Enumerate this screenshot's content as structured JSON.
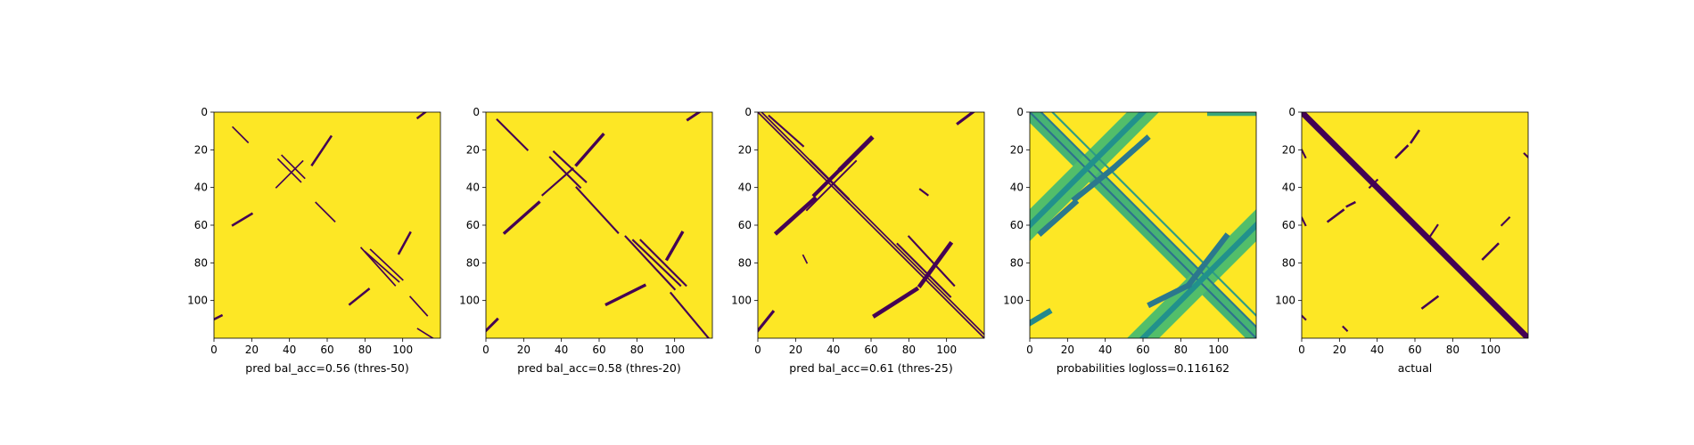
{
  "colors": {
    "background": "#ffffff",
    "low": "#440154",
    "mid_low": "#31688e",
    "mid": "#21918c",
    "mid_high": "#5ec962",
    "high": "#fde725"
  },
  "chart_data": [
    {
      "type": "heatmap",
      "colormap": "viridis",
      "xlabel": "pred bal_acc=0.56 (thres-50)",
      "matrix_size": 120,
      "xlim": [
        0,
        120
      ],
      "ylim": [
        120,
        0
      ],
      "xticks": [
        0,
        20,
        40,
        60,
        80,
        100
      ],
      "yticks": [
        0,
        20,
        40,
        60,
        80,
        100
      ],
      "background_value": 1,
      "segments": [
        {
          "from": [
            34,
            25
          ],
          "to": [
            46,
            37
          ],
          "value": 0,
          "width": 0.8
        },
        {
          "from": [
            36,
            23
          ],
          "to": [
            48,
            35
          ],
          "value": 0,
          "width": 0.8
        },
        {
          "from": [
            33,
            40
          ],
          "to": [
            47,
            26
          ],
          "value": 0,
          "width": 0.8
        },
        {
          "from": [
            10,
            8
          ],
          "to": [
            18,
            16
          ],
          "value": 0,
          "width": 0.8
        },
        {
          "from": [
            54,
            48
          ],
          "to": [
            64,
            58
          ],
          "value": 0,
          "width": 0.8
        },
        {
          "from": [
            78,
            72
          ],
          "to": [
            96,
            92
          ],
          "value": 0,
          "width": 0.8
        },
        {
          "from": [
            80,
            74
          ],
          "to": [
            98,
            90
          ],
          "value": 0,
          "width": 0.8
        },
        {
          "from": [
            83,
            73
          ],
          "to": [
            100,
            89
          ],
          "value": 0,
          "width": 0.8
        },
        {
          "from": [
            104,
            98
          ],
          "to": [
            113,
            108
          ],
          "value": 0,
          "width": 0.8
        },
        {
          "from": [
            108,
            115
          ],
          "to": [
            116,
            120
          ],
          "value": 0,
          "width": 0.8
        },
        {
          "from": [
            10,
            60
          ],
          "to": [
            20,
            54
          ],
          "value": 0,
          "width": 1.2
        },
        {
          "from": [
            52,
            28
          ],
          "to": [
            62,
            13
          ],
          "value": 0,
          "width": 1.2
        },
        {
          "from": [
            72,
            102
          ],
          "to": [
            82,
            94
          ],
          "value": 0,
          "width": 1.2
        },
        {
          "from": [
            98,
            75
          ],
          "to": [
            104,
            64
          ],
          "value": 0,
          "width": 1.2
        },
        {
          "from": [
            0,
            110
          ],
          "to": [
            4,
            108
          ],
          "value": 0,
          "width": 1.2
        },
        {
          "from": [
            108,
            3
          ],
          "to": [
            112,
            0
          ],
          "value": 0,
          "width": 1.2
        }
      ]
    },
    {
      "type": "heatmap",
      "colormap": "viridis",
      "xlabel": "pred bal_acc=0.58 (thres-20)",
      "matrix_size": 120,
      "xlim": [
        0,
        120
      ],
      "ylim": [
        120,
        0
      ],
      "xticks": [
        0,
        20,
        40,
        60,
        80,
        100
      ],
      "yticks": [
        0,
        20,
        40,
        60,
        80,
        100
      ],
      "background_value": 1,
      "segments": [
        {
          "from": [
            34,
            24
          ],
          "to": [
            50,
            40
          ],
          "value": 0,
          "width": 1
        },
        {
          "from": [
            36,
            21
          ],
          "to": [
            53,
            37
          ],
          "value": 0,
          "width": 1
        },
        {
          "from": [
            30,
            44
          ],
          "to": [
            46,
            30
          ],
          "value": 0,
          "width": 1
        },
        {
          "from": [
            6,
            4
          ],
          "to": [
            22,
            20
          ],
          "value": 0,
          "width": 1
        },
        {
          "from": [
            48,
            40
          ],
          "to": [
            70,
            64
          ],
          "value": 0,
          "width": 1
        },
        {
          "from": [
            74,
            66
          ],
          "to": [
            100,
            94
          ],
          "value": 0,
          "width": 1
        },
        {
          "from": [
            78,
            68
          ],
          "to": [
            103,
            92
          ],
          "value": 0,
          "width": 1
        },
        {
          "from": [
            82,
            68
          ],
          "to": [
            106,
            92
          ],
          "value": 0,
          "width": 1
        },
        {
          "from": [
            98,
            96
          ],
          "to": [
            118,
            120
          ],
          "value": 0,
          "width": 1
        },
        {
          "from": [
            10,
            64
          ],
          "to": [
            28,
            48
          ],
          "value": 0,
          "width": 1.6
        },
        {
          "from": [
            48,
            28
          ],
          "to": [
            62,
            12
          ],
          "value": 0,
          "width": 1.6
        },
        {
          "from": [
            64,
            102
          ],
          "to": [
            84,
            92
          ],
          "value": 0,
          "width": 1.6
        },
        {
          "from": [
            96,
            78
          ],
          "to": [
            104,
            64
          ],
          "value": 0,
          "width": 1.6
        },
        {
          "from": [
            0,
            116
          ],
          "to": [
            6,
            110
          ],
          "value": 0,
          "width": 1.4
        },
        {
          "from": [
            107,
            4
          ],
          "to": [
            113,
            0
          ],
          "value": 0,
          "width": 1.4
        }
      ]
    },
    {
      "type": "heatmap",
      "colormap": "viridis",
      "xlabel": "pred bal_acc=0.61 (thres-25)",
      "matrix_size": 120,
      "xlim": [
        0,
        120
      ],
      "ylim": [
        120,
        0
      ],
      "xticks": [
        0,
        20,
        40,
        60,
        80,
        100
      ],
      "yticks": [
        0,
        20,
        40,
        60,
        80,
        100
      ],
      "background_value": 1,
      "segments": [
        {
          "from": [
            0,
            0
          ],
          "to": [
            120,
            120
          ],
          "value": 0,
          "width": 0.8
        },
        {
          "from": [
            2,
            0
          ],
          "to": [
            120,
            118
          ],
          "value": 0,
          "width": 0.8
        },
        {
          "from": [
            26,
            52
          ],
          "to": [
            52,
            26
          ],
          "value": 0,
          "width": 0.9
        },
        {
          "from": [
            28,
            26
          ],
          "to": [
            48,
            46
          ],
          "value": 0,
          "width": 1.2
        },
        {
          "from": [
            74,
            70
          ],
          "to": [
            102,
            98
          ],
          "value": 0,
          "width": 1
        },
        {
          "from": [
            80,
            66
          ],
          "to": [
            104,
            92
          ],
          "value": 0,
          "width": 1
        },
        {
          "from": [
            6,
            2
          ],
          "to": [
            24,
            18
          ],
          "value": 0,
          "width": 1
        },
        {
          "from": [
            10,
            64
          ],
          "to": [
            30,
            46
          ],
          "value": 0,
          "width": 2.2
        },
        {
          "from": [
            30,
            44
          ],
          "to": [
            44,
            30
          ],
          "value": 0,
          "width": 2
        },
        {
          "from": [
            44,
            30
          ],
          "to": [
            60,
            14
          ],
          "value": 0,
          "width": 2.4
        },
        {
          "from": [
            62,
            108
          ],
          "to": [
            84,
            94
          ],
          "value": 0,
          "width": 2.2
        },
        {
          "from": [
            86,
            92
          ],
          "to": [
            102,
            70
          ],
          "value": 0,
          "width": 2.2
        },
        {
          "from": [
            0,
            116
          ],
          "to": [
            8,
            106
          ],
          "value": 0,
          "width": 1.5
        },
        {
          "from": [
            106,
            6
          ],
          "to": [
            114,
            0
          ],
          "value": 0,
          "width": 1.5
        },
        {
          "from": [
            86,
            41
          ],
          "to": [
            90,
            44
          ],
          "value": 0,
          "width": 1
        },
        {
          "from": [
            24,
            76
          ],
          "to": [
            26,
            80
          ],
          "value": 0,
          "width": 0.8
        }
      ]
    },
    {
      "type": "heatmap",
      "colormap": "viridis",
      "xlabel": "probabilities logloss=0.116162",
      "matrix_size": 120,
      "xlim": [
        0,
        120
      ],
      "ylim": [
        120,
        0
      ],
      "xticks": [
        0,
        20,
        40,
        60,
        80,
        100
      ],
      "yticks": [
        0,
        20,
        40,
        60,
        80,
        100
      ],
      "background_value": 1,
      "segments": [
        {
          "from": [
            0,
            0
          ],
          "to": [
            120,
            120
          ],
          "value": 0.65,
          "width": 8
        },
        {
          "from": [
            0,
            60
          ],
          "to": [
            60,
            0
          ],
          "value": 0.7,
          "width": 12
        },
        {
          "from": [
            60,
            120
          ],
          "to": [
            120,
            60
          ],
          "value": 0.7,
          "width": 12
        },
        {
          "from": [
            0,
            0
          ],
          "to": [
            120,
            120
          ],
          "value": 0.3,
          "width": 1
        },
        {
          "from": [
            6,
            0
          ],
          "to": [
            120,
            114
          ],
          "value": 0.35,
          "width": 1
        },
        {
          "from": [
            12,
            0
          ],
          "to": [
            120,
            108
          ],
          "value": 0.55,
          "width": 1
        },
        {
          "from": [
            0,
            60
          ],
          "to": [
            60,
            0
          ],
          "value": 0.5,
          "width": 3
        },
        {
          "from": [
            60,
            120
          ],
          "to": [
            120,
            60
          ],
          "value": 0.5,
          "width": 3
        },
        {
          "from": [
            6,
            64
          ],
          "to": [
            24,
            48
          ],
          "value": 0.35,
          "width": 3
        },
        {
          "from": [
            24,
            46
          ],
          "to": [
            44,
            30
          ],
          "value": 0.35,
          "width": 3
        },
        {
          "from": [
            44,
            30
          ],
          "to": [
            62,
            14
          ],
          "value": 0.35,
          "width": 3
        },
        {
          "from": [
            64,
            102
          ],
          "to": [
            84,
            92
          ],
          "value": 0.35,
          "width": 3
        },
        {
          "from": [
            84,
            92
          ],
          "to": [
            104,
            66
          ],
          "value": 0.35,
          "width": 3
        },
        {
          "from": [
            96,
            0
          ],
          "to": [
            118,
            0
          ],
          "value": 0.6,
          "width": 4
        },
        {
          "from": [
            0,
            112
          ],
          "to": [
            10,
            106
          ],
          "value": 0.45,
          "width": 3
        }
      ]
    },
    {
      "type": "heatmap",
      "colormap": "viridis",
      "xlabel": "actual",
      "matrix_size": 120,
      "xlim": [
        0,
        120
      ],
      "ylim": [
        120,
        0
      ],
      "xticks": [
        0,
        20,
        40,
        60,
        80,
        100
      ],
      "yticks": [
        0,
        20,
        40,
        60,
        80,
        100
      ],
      "background_value": 1,
      "segments": [
        {
          "from": [
            0,
            0
          ],
          "to": [
            120,
            120
          ],
          "value": 0,
          "width": 3.2
        },
        {
          "from": [
            50,
            24
          ],
          "to": [
            56,
            18
          ],
          "value": 0,
          "width": 1.2
        },
        {
          "from": [
            58,
            16
          ],
          "to": [
            62,
            10
          ],
          "value": 0,
          "width": 1.2
        },
        {
          "from": [
            14,
            58
          ],
          "to": [
            22,
            52
          ],
          "value": 0,
          "width": 1.2
        },
        {
          "from": [
            24,
            50
          ],
          "to": [
            28,
            48
          ],
          "value": 0,
          "width": 1.2
        },
        {
          "from": [
            36,
            40
          ],
          "to": [
            40,
            36
          ],
          "value": 0,
          "width": 1
        },
        {
          "from": [
            68,
            66
          ],
          "to": [
            72,
            60
          ],
          "value": 0,
          "width": 1
        },
        {
          "from": [
            64,
            104
          ],
          "to": [
            72,
            98
          ],
          "value": 0,
          "width": 1.2
        },
        {
          "from": [
            96,
            78
          ],
          "to": [
            104,
            70
          ],
          "value": 0,
          "width": 1.2
        },
        {
          "from": [
            106,
            60
          ],
          "to": [
            110,
            56
          ],
          "value": 0,
          "width": 1
        },
        {
          "from": [
            0,
            20
          ],
          "to": [
            2,
            24
          ],
          "value": 0,
          "width": 1
        },
        {
          "from": [
            0,
            56
          ],
          "to": [
            2,
            60
          ],
          "value": 0,
          "width": 1
        },
        {
          "from": [
            118,
            22
          ],
          "to": [
            120,
            24
          ],
          "value": 0,
          "width": 1
        },
        {
          "from": [
            22,
            114
          ],
          "to": [
            24,
            116
          ],
          "value": 0,
          "width": 1
        },
        {
          "from": [
            0,
            108
          ],
          "to": [
            2,
            110
          ],
          "value": 0,
          "width": 1
        }
      ]
    }
  ]
}
